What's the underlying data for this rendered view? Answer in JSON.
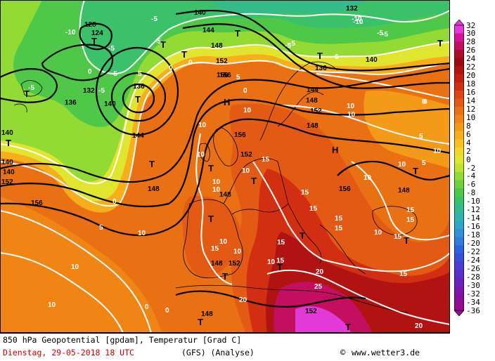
{
  "footer": {
    "line1": "850 hPa Geopotential [gpdam], Temperatur [Grad C]",
    "date": "Dienstag, 29-05-2018  18 UTC",
    "model": "(GFS)  (Analyse)",
    "credit": "www.wetter3.de",
    "copyright_symbol": "©"
  },
  "colorbar": {
    "labels": [
      "32",
      "30",
      "28",
      "26",
      "24",
      "22",
      "20",
      "18",
      "16",
      "14",
      "12",
      "10",
      "8",
      "6",
      "4",
      "2",
      "0",
      "-2",
      "-4",
      "-6",
      "-8",
      "-10",
      "-12",
      "-14",
      "-16",
      "-18",
      "-20",
      "-22",
      "-24",
      "-26",
      "-28",
      "-30",
      "-32",
      "-34",
      "-36"
    ],
    "colors": [
      "#e23ad6",
      "#d9119b",
      "#c40f60",
      "#ad0b2c",
      "#9a0a12",
      "#b11313",
      "#c61d12",
      "#d22e12",
      "#dd4513",
      "#e35a14",
      "#ea7014",
      "#f08516",
      "#f39a18",
      "#f6ae1b",
      "#f8c21f",
      "#f4d627",
      "#e0e62f",
      "#bde431",
      "#93da35",
      "#6fd13b",
      "#4fc84a",
      "#3bc169",
      "#33bb8c",
      "#30b4ad",
      "#2fa6c7",
      "#2f92d6",
      "#2f7bde",
      "#2f62e0",
      "#3b4fdf",
      "#4b3ed8",
      "#5a2ecc",
      "#6a22bf",
      "#7a17ae",
      "#8a0e9c",
      "#9a0a8c"
    ]
  },
  "map": {
    "pressure_labels": [
      {
        "text": "140"
      },
      {
        "text": "128"
      },
      {
        "text": "124"
      },
      {
        "text": "136"
      },
      {
        "text": "132"
      },
      {
        "text": "140"
      },
      {
        "text": "136"
      },
      {
        "text": "140"
      },
      {
        "text": "144"
      },
      {
        "text": "148"
      },
      {
        "text": "152"
      },
      {
        "text": "156"
      },
      {
        "text": "148"
      },
      {
        "text": "152"
      },
      {
        "text": "156"
      },
      {
        "text": "156"
      },
      {
        "text": "148"
      },
      {
        "text": "152"
      },
      {
        "text": "144"
      },
      {
        "text": "140"
      },
      {
        "text": "136"
      },
      {
        "text": "132"
      },
      {
        "text": "148"
      },
      {
        "text": "152"
      },
      {
        "text": "156"
      },
      {
        "text": "148"
      },
      {
        "text": "148"
      },
      {
        "text": "152"
      },
      {
        "text": "148"
      },
      {
        "text": "144"
      },
      {
        "text": "140"
      },
      {
        "text": "156"
      },
      {
        "text": "140"
      },
      {
        "text": "148"
      },
      {
        "text": "152"
      }
    ],
    "temp_labels": [
      {
        "text": "-10"
      },
      {
        "text": "-5"
      },
      {
        "text": "-5"
      },
      {
        "text": "-10"
      },
      {
        "text": "-5"
      },
      {
        "text": "-5"
      },
      {
        "text": "0"
      },
      {
        "text": "0"
      },
      {
        "text": "-5"
      },
      {
        "text": "-5"
      },
      {
        "text": "0"
      },
      {
        "text": "5"
      },
      {
        "text": "0"
      },
      {
        "text": "-5"
      },
      {
        "text": "-5"
      },
      {
        "text": "0"
      },
      {
        "text": "5"
      },
      {
        "text": "0"
      },
      {
        "text": "0"
      },
      {
        "text": "10"
      },
      {
        "text": "10"
      },
      {
        "text": "10"
      },
      {
        "text": "10"
      },
      {
        "text": "10"
      },
      {
        "text": "5"
      },
      {
        "text": "10"
      },
      {
        "text": "10"
      },
      {
        "text": "10"
      },
      {
        "text": "15"
      },
      {
        "text": "15"
      },
      {
        "text": "15"
      },
      {
        "text": "15"
      },
      {
        "text": "15"
      },
      {
        "text": "15"
      },
      {
        "text": "15"
      },
      {
        "text": "10"
      },
      {
        "text": "10"
      },
      {
        "text": "10"
      },
      {
        "text": "10"
      },
      {
        "text": "10"
      },
      {
        "text": "20"
      },
      {
        "text": "25"
      },
      {
        "text": "20"
      },
      {
        "text": "15"
      },
      {
        "text": "15"
      },
      {
        "text": "10"
      },
      {
        "text": "10"
      },
      {
        "text": "15"
      },
      {
        "text": "15"
      },
      {
        "text": "15"
      },
      {
        "text": "20"
      },
      {
        "text": "5"
      },
      {
        "text": "10"
      },
      {
        "text": "10"
      },
      {
        "text": "5"
      },
      {
        "text": "10"
      },
      {
        "text": "-5"
      },
      {
        "text": "-10"
      },
      {
        "text": "-5"
      },
      {
        "text": "6"
      },
      {
        "text": "0"
      },
      {
        "text": "0"
      }
    ],
    "centers": [
      {
        "text": "T"
      },
      {
        "text": "T"
      },
      {
        "text": "T"
      },
      {
        "text": "T"
      },
      {
        "text": "T"
      },
      {
        "text": "T"
      },
      {
        "text": "T"
      },
      {
        "text": "T"
      },
      {
        "text": "H"
      },
      {
        "text": "H"
      },
      {
        "text": "T"
      },
      {
        "text": "T"
      },
      {
        "text": "T"
      },
      {
        "text": "T"
      },
      {
        "text": "T"
      },
      {
        "text": "T"
      },
      {
        "text": "T"
      },
      {
        "text": "T"
      },
      {
        "text": "T"
      },
      {
        "text": "T"
      },
      {
        "text": "T"
      },
      {
        "text": "T"
      }
    ]
  }
}
